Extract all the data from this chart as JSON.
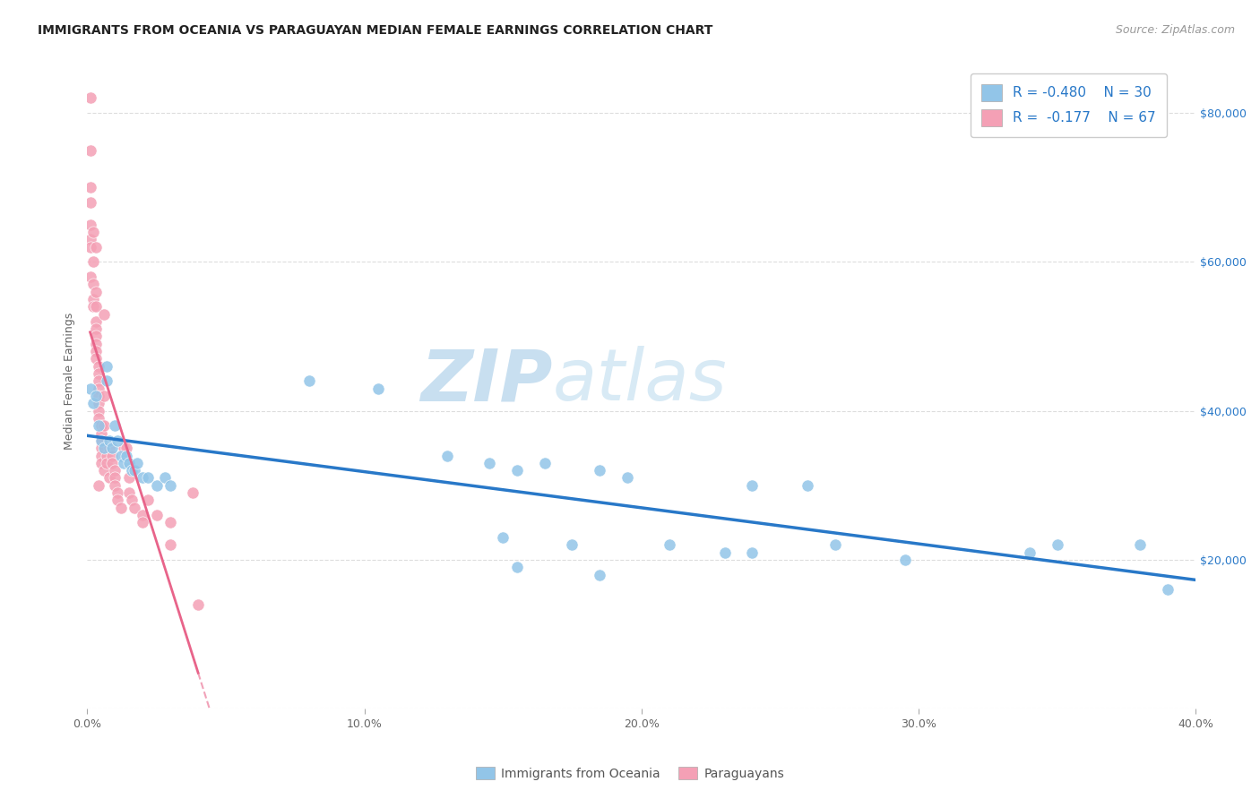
{
  "title": "IMMIGRANTS FROM OCEANIA VS PARAGUAYAN MEDIAN FEMALE EARNINGS CORRELATION CHART",
  "source": "Source: ZipAtlas.com",
  "ylabel": "Median Female Earnings",
  "y_ticks": [
    0,
    20000,
    40000,
    60000,
    80000
  ],
  "y_tick_labels": [
    "",
    "$20,000",
    "$40,000",
    "$60,000",
    "$80,000"
  ],
  "xlim": [
    0.0,
    0.4
  ],
  "ylim": [
    0,
    88000
  ],
  "color_blue": "#92c5e8",
  "color_pink": "#f4a0b5",
  "color_blue_line": "#2878c8",
  "color_pink_line": "#e8648a",
  "color_blue_text": "#2878c8",
  "color_axis_text": "#666666",
  "watermark_color": "#c8dff0",
  "background": "#ffffff",
  "blue_points": [
    [
      0.001,
      43000
    ],
    [
      0.002,
      41000
    ],
    [
      0.003,
      42000
    ],
    [
      0.004,
      38000
    ],
    [
      0.005,
      36000
    ],
    [
      0.006,
      35000
    ],
    [
      0.007,
      46000
    ],
    [
      0.007,
      44000
    ],
    [
      0.008,
      36000
    ],
    [
      0.009,
      35000
    ],
    [
      0.01,
      38000
    ],
    [
      0.011,
      36000
    ],
    [
      0.012,
      34000
    ],
    [
      0.013,
      33000
    ],
    [
      0.014,
      34000
    ],
    [
      0.015,
      33000
    ],
    [
      0.016,
      32000
    ],
    [
      0.017,
      32000
    ],
    [
      0.018,
      33000
    ],
    [
      0.02,
      31000
    ],
    [
      0.022,
      31000
    ],
    [
      0.025,
      30000
    ],
    [
      0.028,
      31000
    ],
    [
      0.03,
      30000
    ],
    [
      0.08,
      44000
    ],
    [
      0.105,
      43000
    ],
    [
      0.13,
      34000
    ],
    [
      0.145,
      33000
    ],
    [
      0.155,
      32000
    ],
    [
      0.165,
      33000
    ],
    [
      0.185,
      32000
    ],
    [
      0.195,
      31000
    ],
    [
      0.24,
      30000
    ],
    [
      0.26,
      30000
    ],
    [
      0.15,
      23000
    ],
    [
      0.175,
      22000
    ],
    [
      0.21,
      22000
    ],
    [
      0.23,
      21000
    ],
    [
      0.27,
      22000
    ],
    [
      0.155,
      19000
    ],
    [
      0.185,
      18000
    ],
    [
      0.24,
      21000
    ],
    [
      0.295,
      20000
    ],
    [
      0.34,
      21000
    ],
    [
      0.35,
      22000
    ],
    [
      0.38,
      22000
    ],
    [
      0.39,
      16000
    ]
  ],
  "pink_points": [
    [
      0.001,
      82000
    ],
    [
      0.001,
      75000
    ],
    [
      0.001,
      70000
    ],
    [
      0.001,
      68000
    ],
    [
      0.001,
      65000
    ],
    [
      0.001,
      63000
    ],
    [
      0.001,
      62000
    ],
    [
      0.001,
      58000
    ],
    [
      0.002,
      64000
    ],
    [
      0.002,
      60000
    ],
    [
      0.002,
      57000
    ],
    [
      0.002,
      55000
    ],
    [
      0.002,
      54000
    ],
    [
      0.003,
      62000
    ],
    [
      0.003,
      56000
    ],
    [
      0.003,
      54000
    ],
    [
      0.003,
      52000
    ],
    [
      0.003,
      51000
    ],
    [
      0.003,
      50000
    ],
    [
      0.003,
      49000
    ],
    [
      0.003,
      48000
    ],
    [
      0.003,
      47000
    ],
    [
      0.004,
      46000
    ],
    [
      0.004,
      45000
    ],
    [
      0.004,
      44000
    ],
    [
      0.004,
      43000
    ],
    [
      0.004,
      42000
    ],
    [
      0.004,
      41000
    ],
    [
      0.004,
      40000
    ],
    [
      0.004,
      39000
    ],
    [
      0.005,
      38000
    ],
    [
      0.005,
      37000
    ],
    [
      0.005,
      36000
    ],
    [
      0.005,
      35000
    ],
    [
      0.005,
      34000
    ],
    [
      0.005,
      33000
    ],
    [
      0.006,
      53000
    ],
    [
      0.006,
      42000
    ],
    [
      0.006,
      38000
    ],
    [
      0.006,
      32000
    ],
    [
      0.007,
      34000
    ],
    [
      0.007,
      33000
    ],
    [
      0.008,
      35000
    ],
    [
      0.008,
      31000
    ],
    [
      0.009,
      34000
    ],
    [
      0.009,
      33000
    ],
    [
      0.01,
      32000
    ],
    [
      0.01,
      31000
    ],
    [
      0.01,
      30000
    ],
    [
      0.011,
      29000
    ],
    [
      0.011,
      28000
    ],
    [
      0.012,
      27000
    ],
    [
      0.013,
      35000
    ],
    [
      0.014,
      35000
    ],
    [
      0.015,
      31000
    ],
    [
      0.015,
      29000
    ],
    [
      0.016,
      28000
    ],
    [
      0.017,
      27000
    ],
    [
      0.02,
      26000
    ],
    [
      0.02,
      25000
    ],
    [
      0.022,
      28000
    ],
    [
      0.025,
      26000
    ],
    [
      0.03,
      22000
    ],
    [
      0.038,
      29000
    ],
    [
      0.04,
      14000
    ],
    [
      0.004,
      30000
    ],
    [
      0.03,
      25000
    ]
  ],
  "grid_color": "#dddddd",
  "title_fontsize": 10,
  "source_fontsize": 9,
  "axis_label_fontsize": 9,
  "tick_fontsize": 9,
  "legend_fontsize": 11
}
